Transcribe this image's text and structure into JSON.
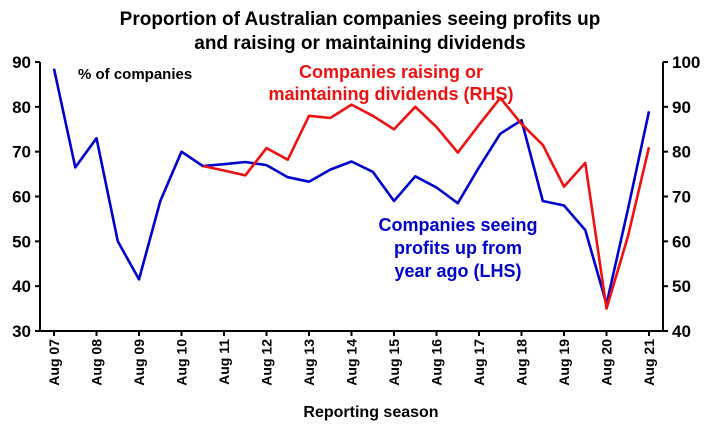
{
  "chart_data": {
    "type": "line",
    "title_lines": [
      "Proportion of Australian companies seeing profits up",
      "and raising or maintaining dividends"
    ],
    "xlabel": "Reporting season",
    "ylabel_left": "% of companies",
    "ylim_left": [
      30,
      90
    ],
    "yticks_left": [
      30,
      40,
      50,
      60,
      70,
      80,
      90
    ],
    "ylim_right": [
      40,
      100
    ],
    "yticks_right": [
      40,
      50,
      60,
      70,
      80,
      90,
      100
    ],
    "x_labels": [
      "Aug 07",
      "Aug 08",
      "Aug 09",
      "Aug 10",
      "Aug 11",
      "Aug 12",
      "Aug 13",
      "Aug 14",
      "Aug 15",
      "Aug 16",
      "Aug 17",
      "Aug 18",
      "Aug 19",
      "Aug 20",
      "Aug 21"
    ],
    "period_count": 29,
    "label_every": 2,
    "colors": {
      "lhs": "#0000cc",
      "rhs": "#ee1111",
      "axis": "#000000"
    },
    "series": [
      {
        "name": "Companies seeing profits up from year ago (LHS)",
        "label_lines": [
          "Companies seeing",
          "profits up from",
          "year ago (LHS)"
        ],
        "axis": "left",
        "color": "#0000cc",
        "start_index": 0,
        "values": [
          88.5,
          66.5,
          73,
          50,
          41.5,
          59,
          70,
          66.8,
          67.2,
          67.7,
          67,
          64.3,
          63.3,
          66,
          67.8,
          65.5,
          59,
          64.5,
          62,
          58.5,
          66.5,
          74,
          77,
          59,
          58,
          52.5,
          36,
          57,
          79
        ]
      },
      {
        "name": "Companies raising or maintaining dividends (RHS)",
        "label_lines": [
          "Companies raising or",
          "maintaining dividends (RHS)"
        ],
        "axis": "right",
        "color": "#ee1111",
        "start_index": 7,
        "values": [
          76.8,
          75.8,
          74.7,
          80.8,
          78.2,
          88,
          87.5,
          90.5,
          88,
          85,
          90,
          85.5,
          79.8,
          86,
          92,
          86.2,
          81.5,
          72.2,
          77.5,
          45,
          61,
          81
        ]
      }
    ]
  }
}
